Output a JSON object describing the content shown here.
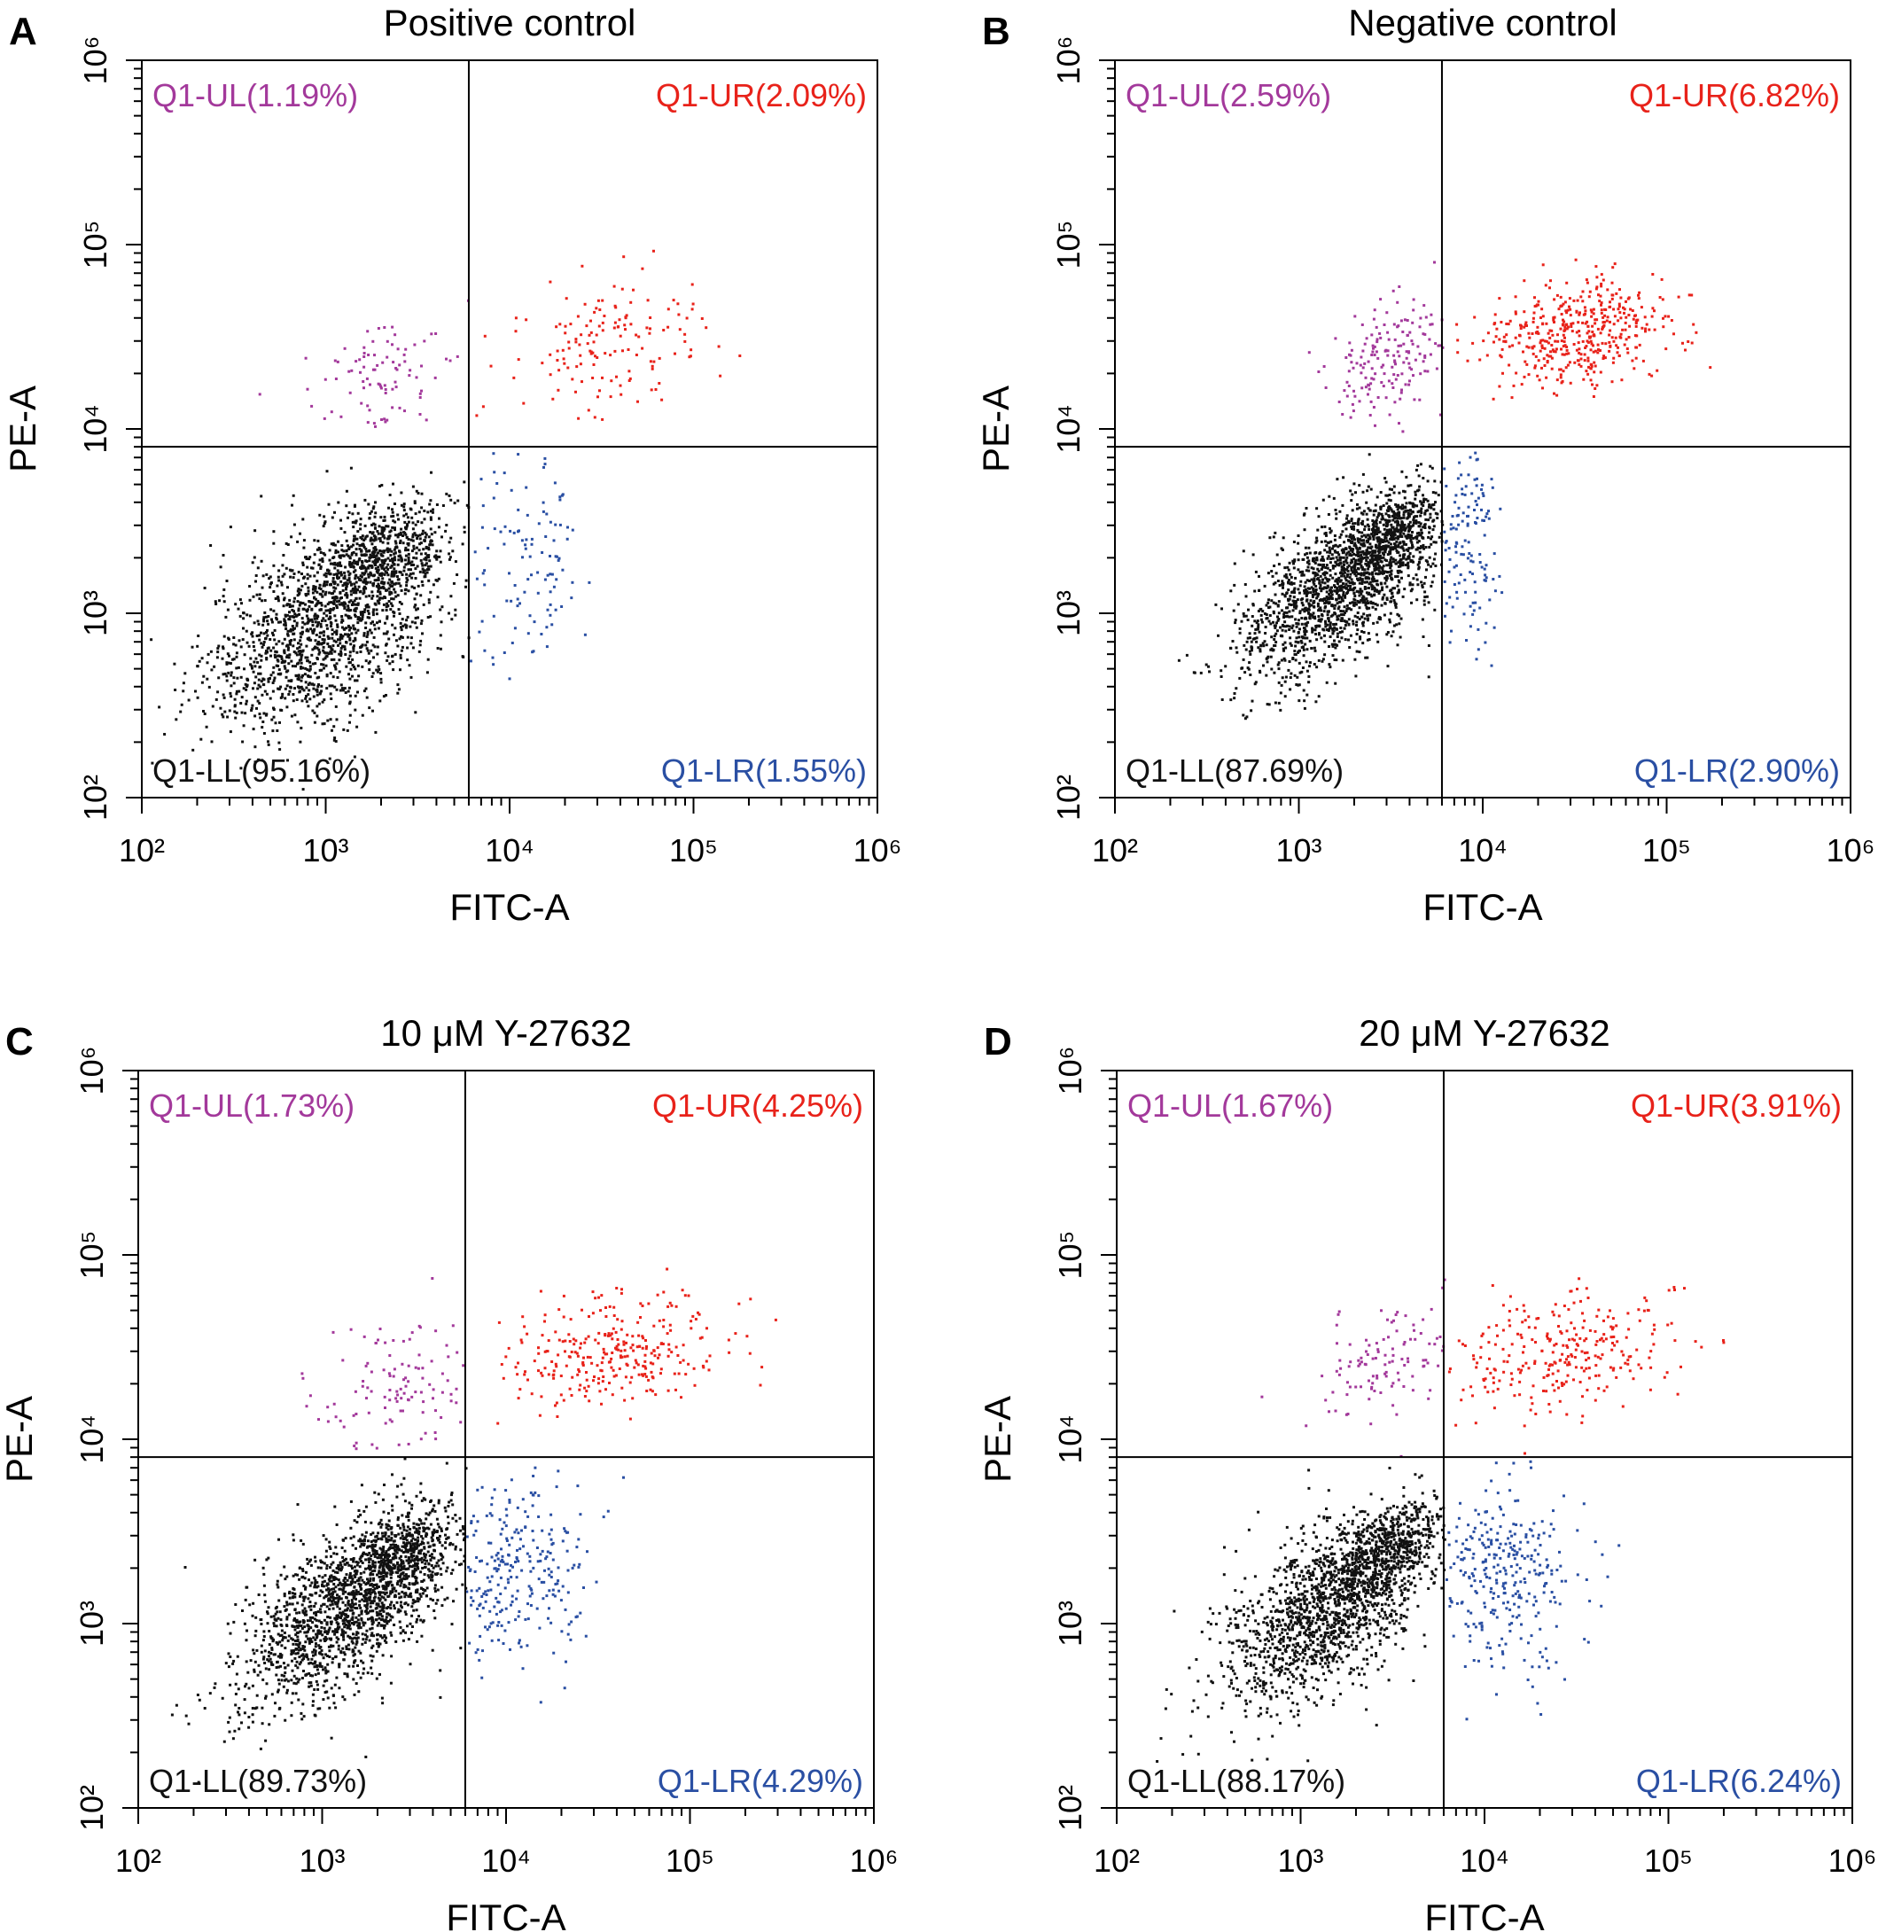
{
  "chart_data": [
    {
      "panel_letter": "A",
      "type": "scatter",
      "title": "Positive control",
      "xlabel": "FITC-A",
      "ylabel": "PE-A",
      "x_scale": "log",
      "y_scale": "log",
      "xlim": [
        100,
        1000000
      ],
      "ylim": [
        100,
        1000000
      ],
      "x_ticks": [
        100,
        1000,
        10000,
        100000,
        1000000
      ],
      "y_ticks": [
        100,
        1000,
        10000,
        100000,
        1000000
      ],
      "gate": {
        "x": 6000,
        "y": 8000
      },
      "quadrants": [
        {
          "name": "Q1-UL",
          "percent": "1.19%",
          "label": "Q1-UL(1.19%)",
          "position": "upper-left",
          "color": "#a3399b"
        },
        {
          "name": "Q1-UR",
          "percent": "2.09%",
          "label": "Q1-UR(2.09%)",
          "position": "upper-right",
          "color": "#e8221a"
        },
        {
          "name": "Q1-LL",
          "percent": "95.16%",
          "label": "Q1-LL(95.16%)",
          "position": "lower-left",
          "color": "#111111"
        },
        {
          "name": "Q1-LR",
          "percent": "1.55%",
          "label": "Q1-LR(1.55%)",
          "position": "lower-right",
          "color": "#2a4fa3"
        }
      ],
      "clusters": [
        {
          "quadrant": "LL",
          "cx": 1000,
          "cy": 900,
          "sx": 0.33,
          "sy": 0.3,
          "rho": 0.5,
          "n": 1500,
          "color": "#111111"
        },
        {
          "quadrant": "LL",
          "cx": 2000,
          "cy": 2000,
          "sx": 0.18,
          "sy": 0.15,
          "rho": 0.4,
          "n": 500,
          "color": "#111111"
        },
        {
          "quadrant": "UL",
          "cx": 2000,
          "cy": 20000,
          "sx": 0.22,
          "sy": 0.18,
          "rho": 0.3,
          "n": 90,
          "color": "#a3399b"
        },
        {
          "quadrant": "UR",
          "cx": 35000,
          "cy": 30000,
          "sx": 0.3,
          "sy": 0.2,
          "rho": 0.2,
          "n": 150,
          "color": "#e8221a"
        },
        {
          "quadrant": "LR",
          "cx": 12000,
          "cy": 1800,
          "sx": 0.22,
          "sy": 0.3,
          "rho": 0.0,
          "n": 110,
          "color": "#2a4fa3"
        }
      ]
    },
    {
      "panel_letter": "B",
      "type": "scatter",
      "title": "Negative control",
      "xlabel": "FITC-A",
      "ylabel": "PE-A",
      "x_scale": "log",
      "y_scale": "log",
      "xlim": [
        100,
        1000000
      ],
      "ylim": [
        100,
        1000000
      ],
      "x_ticks": [
        100,
        1000,
        10000,
        100000,
        1000000
      ],
      "y_ticks": [
        100,
        1000,
        10000,
        100000,
        1000000
      ],
      "gate": {
        "x": 6000,
        "y": 8000
      },
      "quadrants": [
        {
          "name": "Q1-UL",
          "percent": "2.59%",
          "label": "Q1-UL(2.59%)",
          "position": "upper-left",
          "color": "#a3399b"
        },
        {
          "name": "Q1-UR",
          "percent": "6.82%",
          "label": "Q1-UR(6.82%)",
          "position": "upper-right",
          "color": "#e8221a"
        },
        {
          "name": "Q1-LL",
          "percent": "87.69%",
          "label": "Q1-LL(87.69%)",
          "position": "lower-left",
          "color": "#111111"
        },
        {
          "name": "Q1-LR",
          "percent": "2.90%",
          "label": "Q1-LR(2.90%)",
          "position": "lower-right",
          "color": "#2a4fa3"
        }
      ],
      "clusters": [
        {
          "quadrant": "LL",
          "cx": 1600,
          "cy": 1400,
          "sx": 0.28,
          "sy": 0.25,
          "rho": 0.6,
          "n": 1500,
          "color": "#111111"
        },
        {
          "quadrant": "LL",
          "cx": 3000,
          "cy": 2600,
          "sx": 0.15,
          "sy": 0.13,
          "rho": 0.5,
          "n": 500,
          "color": "#111111"
        },
        {
          "quadrant": "UL",
          "cx": 3000,
          "cy": 25000,
          "sx": 0.17,
          "sy": 0.17,
          "rho": 0.3,
          "n": 170,
          "color": "#a3399b"
        },
        {
          "quadrant": "UR",
          "cx": 32000,
          "cy": 33000,
          "sx": 0.26,
          "sy": 0.14,
          "rho": 0.2,
          "n": 450,
          "color": "#e8221a"
        },
        {
          "quadrant": "LR",
          "cx": 8000,
          "cy": 2500,
          "sx": 0.1,
          "sy": 0.28,
          "rho": 0.0,
          "n": 130,
          "color": "#2a4fa3"
        }
      ]
    },
    {
      "panel_letter": "C",
      "type": "scatter",
      "title": "10 μM Y-27632",
      "xlabel": "FITC-A",
      "ylabel": "PE-A",
      "x_scale": "log",
      "y_scale": "log",
      "xlim": [
        100,
        1000000
      ],
      "ylim": [
        100,
        1000000
      ],
      "x_ticks": [
        100,
        1000,
        10000,
        100000,
        1000000
      ],
      "y_ticks": [
        100,
        1000,
        10000,
        100000,
        1000000
      ],
      "gate": {
        "x": 6000,
        "y": 8000
      },
      "quadrants": [
        {
          "name": "Q1-UL",
          "percent": "1.73%",
          "label": "Q1-UL(1.73%)",
          "position": "upper-left",
          "color": "#a3399b"
        },
        {
          "name": "Q1-UR",
          "percent": "4.25%",
          "label": "Q1-UR(4.25%)",
          "position": "upper-right",
          "color": "#e8221a"
        },
        {
          "name": "Q1-LL",
          "percent": "89.73%",
          "label": "Q1-LL(89.73%)",
          "position": "lower-left",
          "color": "#111111"
        },
        {
          "name": "Q1-LR",
          "percent": "4.29%",
          "label": "Q1-LR(4.29%)",
          "position": "lower-right",
          "color": "#2a4fa3"
        }
      ],
      "clusters": [
        {
          "quadrant": "LL",
          "cx": 1300,
          "cy": 1200,
          "sx": 0.3,
          "sy": 0.27,
          "rho": 0.6,
          "n": 1500,
          "color": "#111111"
        },
        {
          "quadrant": "LL",
          "cx": 2500,
          "cy": 2300,
          "sx": 0.15,
          "sy": 0.13,
          "rho": 0.5,
          "n": 500,
          "color": "#111111"
        },
        {
          "quadrant": "UL",
          "cx": 2500,
          "cy": 20000,
          "sx": 0.22,
          "sy": 0.2,
          "rho": 0.3,
          "n": 110,
          "color": "#a3399b"
        },
        {
          "quadrant": "UR",
          "cx": 40000,
          "cy": 30000,
          "sx": 0.3,
          "sy": 0.16,
          "rho": 0.2,
          "n": 300,
          "color": "#e8221a"
        },
        {
          "quadrant": "LR",
          "cx": 11000,
          "cy": 2000,
          "sx": 0.2,
          "sy": 0.27,
          "rho": 0.0,
          "n": 260,
          "color": "#2a4fa3"
        }
      ]
    },
    {
      "panel_letter": "D",
      "type": "scatter",
      "title": "20 μM Y-27632",
      "xlabel": "FITC-A",
      "ylabel": "PE-A",
      "x_scale": "log",
      "y_scale": "log",
      "xlim": [
        100,
        1000000
      ],
      "ylim": [
        100,
        1000000
      ],
      "x_ticks": [
        100,
        1000,
        10000,
        100000,
        1000000
      ],
      "y_ticks": [
        100,
        1000,
        10000,
        100000,
        1000000
      ],
      "gate": {
        "x": 6000,
        "y": 8000
      },
      "quadrants": [
        {
          "name": "Q1-UL",
          "percent": "1.67%",
          "label": "Q1-UL(1.67%)",
          "position": "upper-left",
          "color": "#a3399b"
        },
        {
          "name": "Q1-UR",
          "percent": "3.91%",
          "label": "Q1-UR(3.91%)",
          "position": "upper-right",
          "color": "#e8221a"
        },
        {
          "name": "Q1-LL",
          "percent": "88.17%",
          "label": "Q1-LL(88.17%)",
          "position": "lower-left",
          "color": "#111111"
        },
        {
          "name": "Q1-LR",
          "percent": "6.24%",
          "label": "Q1-LR(6.24%)",
          "position": "lower-right",
          "color": "#2a4fa3"
        }
      ],
      "clusters": [
        {
          "quadrant": "LL",
          "cx": 1400,
          "cy": 1200,
          "sx": 0.3,
          "sy": 0.27,
          "rho": 0.6,
          "n": 1500,
          "color": "#111111"
        },
        {
          "quadrant": "LL",
          "cx": 2800,
          "cy": 2500,
          "sx": 0.15,
          "sy": 0.13,
          "rho": 0.5,
          "n": 500,
          "color": "#111111"
        },
        {
          "quadrant": "UL",
          "cx": 2800,
          "cy": 25000,
          "sx": 0.18,
          "sy": 0.18,
          "rho": 0.3,
          "n": 110,
          "color": "#a3399b"
        },
        {
          "quadrant": "UR",
          "cx": 28000,
          "cy": 30000,
          "sx": 0.28,
          "sy": 0.16,
          "rho": 0.2,
          "n": 280,
          "color": "#e8221a"
        },
        {
          "quadrant": "LR",
          "cx": 12000,
          "cy": 1800,
          "sx": 0.22,
          "sy": 0.25,
          "rho": 0.0,
          "n": 300,
          "color": "#2a4fa3"
        }
      ]
    }
  ]
}
